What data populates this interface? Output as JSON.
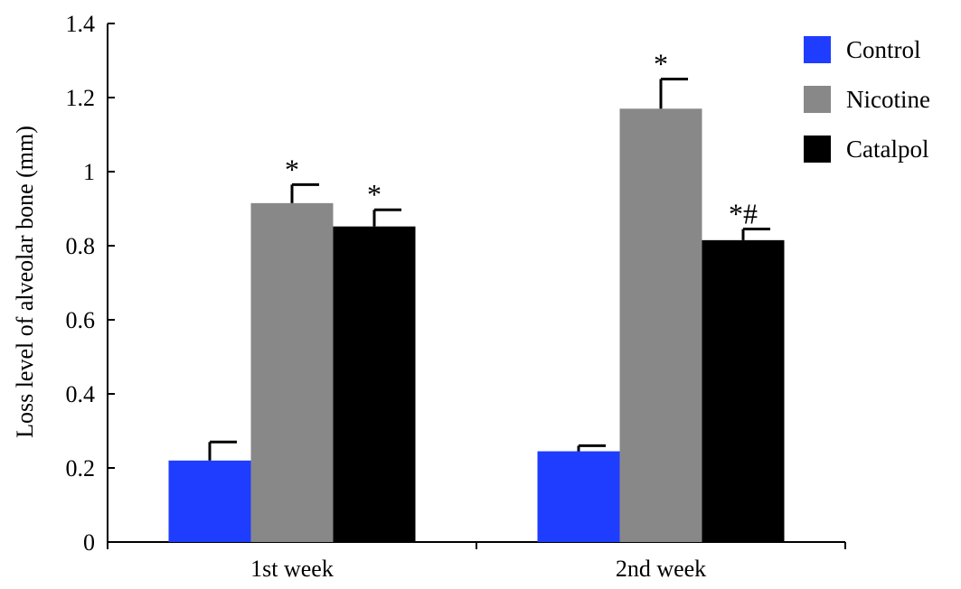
{
  "chart_data": {
    "type": "bar",
    "title": "",
    "xlabel": "",
    "ylabel": "Loss level of alveolar bone (mm)",
    "ylim": [
      0,
      1.4
    ],
    "yticks": [
      "0",
      "0.2",
      "0.4",
      "0.6",
      "0.8",
      "1",
      "1.2",
      "1.4"
    ],
    "categories": [
      "1st week",
      "2nd week"
    ],
    "legend_position": "top-right",
    "grid": false,
    "series": [
      {
        "name": "Control",
        "color": "#1f3dff",
        "values": [
          0.22,
          0.245
        ],
        "errors": [
          0.05,
          0.015
        ],
        "annotations": [
          "",
          ""
        ]
      },
      {
        "name": "Nicotine",
        "color": "#888888",
        "values": [
          0.915,
          1.17
        ],
        "errors": [
          0.05,
          0.08
        ],
        "annotations": [
          "*",
          "*"
        ]
      },
      {
        "name": "Catalpol",
        "color": "#000000",
        "values": [
          0.852,
          0.815
        ],
        "errors": [
          0.045,
          0.03
        ],
        "annotations": [
          "*",
          "*#"
        ]
      }
    ]
  }
}
